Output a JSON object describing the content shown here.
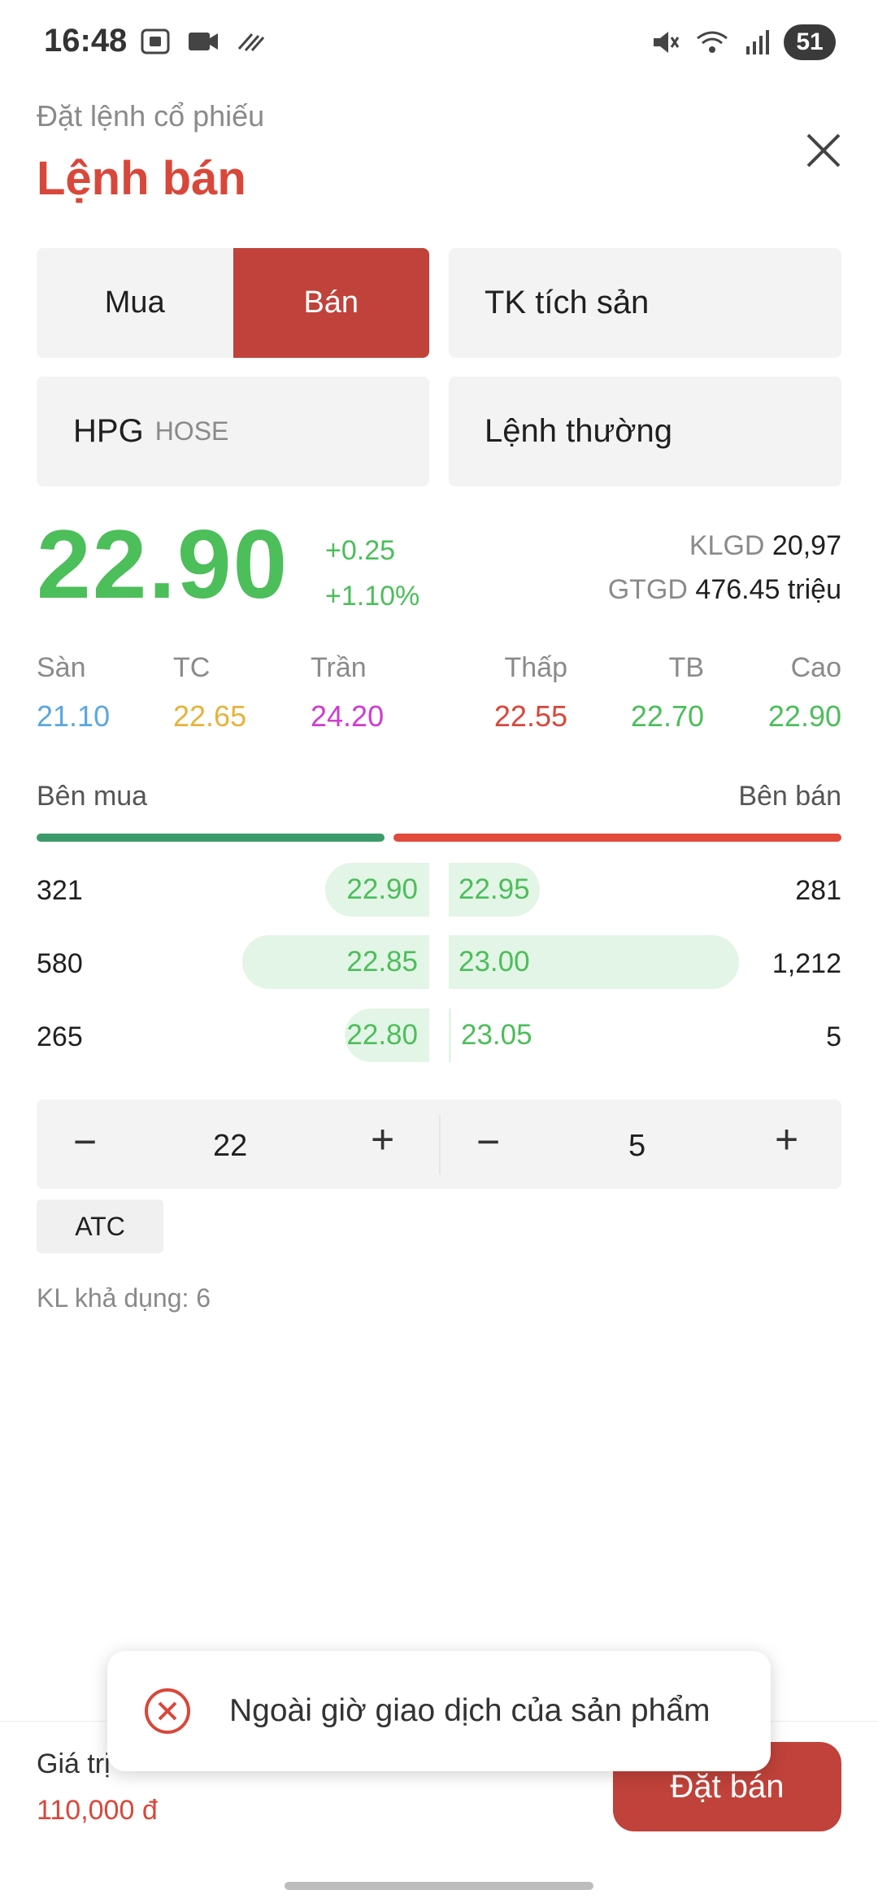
{
  "status_bar": {
    "time": "16:48",
    "battery": "51",
    "icons_left": [
      "screenshot-icon",
      "screen-record-icon",
      "sync-icon"
    ],
    "icons_right": [
      "mute-icon",
      "wifi-icon",
      "signal-icon"
    ]
  },
  "header": {
    "subtitle": "Đặt lệnh cổ phiếu",
    "title": "Lệnh bán"
  },
  "order_side": {
    "buy": "Mua",
    "sell": "Bán",
    "selected": "Bán"
  },
  "account": "TK tích sản",
  "symbol": {
    "code": "HPG",
    "exchange": "HOSE"
  },
  "order_type": "Lệnh thường",
  "quote": {
    "price": "22.90",
    "change": "+0.25",
    "change_pct": "+1.10%",
    "klgd_label": "KLGD",
    "klgd_value": "20,97",
    "gtgd_label": "GTGD",
    "gtgd_value": "476.45 triệu"
  },
  "ref_prices": [
    {
      "label": "Sàn",
      "value": "21.10",
      "color": "#5aa7e0"
    },
    {
      "label": "TC",
      "value": "22.65",
      "color": "#e8b23a"
    },
    {
      "label": "Trần",
      "value": "24.20",
      "color": "#d03cd0"
    },
    {
      "label": "Thấp",
      "value": "22.55",
      "color": "#d9473a"
    },
    {
      "label": "TB",
      "value": "22.70",
      "color": "#4cbe5a"
    },
    {
      "label": "Cao",
      "value": "22.90",
      "color": "#4cbe5a"
    }
  ],
  "order_book": {
    "buy_label": "Bên mua",
    "sell_label": "Bên bán",
    "rows": [
      {
        "buy_vol": "321",
        "buy_price": "22.90",
        "sell_price": "22.95",
        "sell_vol": "281"
      },
      {
        "buy_vol": "580",
        "buy_price": "22.85",
        "sell_price": "23.00",
        "sell_vol": "1,212"
      },
      {
        "buy_vol": "265",
        "buy_price": "22.80",
        "sell_price": "23.05",
        "sell_vol": "5"
      }
    ]
  },
  "price_input": {
    "value": "22",
    "minus": "−",
    "plus": "+"
  },
  "qty_input": {
    "value": "5",
    "minus": "−",
    "plus": "+"
  },
  "atc_label": "ATC",
  "available": "KL khả dụng: 6",
  "footer": {
    "value_label": "Giá trị",
    "value_amount": "110,000 đ",
    "submit_label": "Đặt bán"
  },
  "toast": {
    "message": "Ngoài giờ giao dịch của sản phẩm"
  },
  "colors": {
    "accent_red": "#c0423a",
    "green": "#4cbe5a"
  }
}
